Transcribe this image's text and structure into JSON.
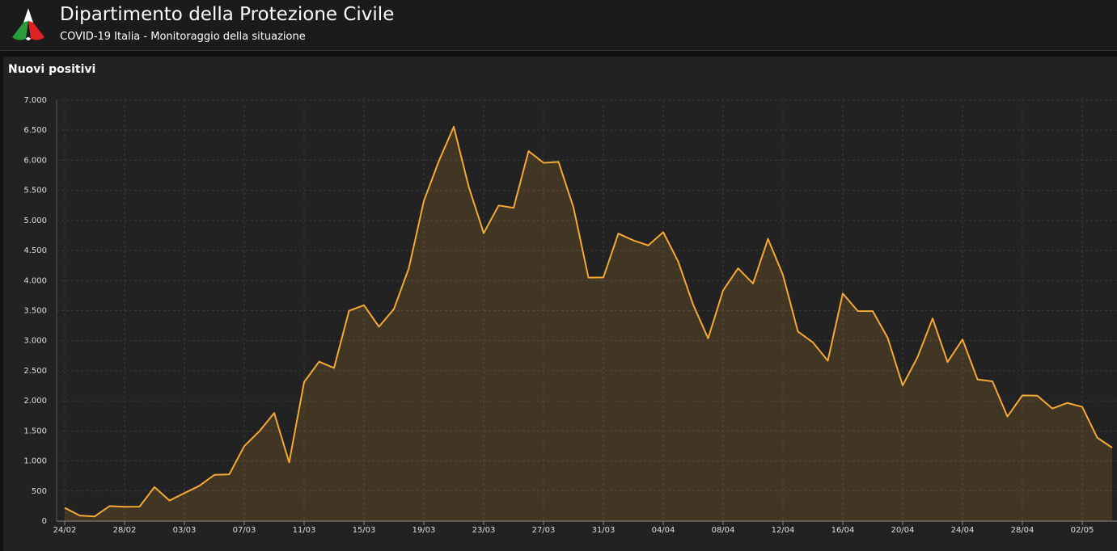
{
  "header": {
    "title": "Dipartimento della Protezione Civile",
    "subtitle": "COVID-19 Italia - Monitoraggio della situazione"
  },
  "chart_data": {
    "type": "area",
    "title": "Nuovi positivi",
    "categories": [
      "24/02",
      null,
      null,
      null,
      "28/02",
      null,
      null,
      null,
      "03/03",
      null,
      null,
      null,
      "07/03",
      null,
      null,
      null,
      "11/03",
      null,
      null,
      null,
      "15/03",
      null,
      null,
      null,
      "19/03",
      null,
      null,
      null,
      "23/03",
      null,
      null,
      null,
      "27/03",
      null,
      null,
      null,
      "31/03",
      null,
      null,
      null,
      "04/04",
      null,
      null,
      null,
      "08/04",
      null,
      null,
      null,
      "12/04",
      null,
      null,
      null,
      "16/04",
      null,
      null,
      null,
      "20/04",
      null,
      null,
      null,
      "24/04",
      null,
      null,
      null,
      "28/04",
      null,
      null,
      null,
      "02/05",
      null,
      null
    ],
    "values": [
      221,
      93,
      78,
      250,
      238,
      240,
      566,
      342,
      466,
      587,
      769,
      778,
      1247,
      1492,
      1797,
      977,
      2313,
      2651,
      2547,
      3497,
      3590,
      3233,
      3526,
      4207,
      5322,
      5986,
      6557,
      5560,
      4789,
      5249,
      5210,
      6153,
      5959,
      5974,
      5217,
      4050,
      4053,
      4782,
      4668,
      4585,
      4805,
      4316,
      3599,
      3039,
      3836,
      4204,
      3951,
      4694,
      4092,
      3153,
      2972,
      2667,
      3786,
      3493,
      3491,
      3047,
      2256,
      2729,
      3370,
      2646,
      3021,
      2357,
      2324,
      1739,
      2091,
      2086,
      1872,
      1965,
      1900,
      1389,
      1221
    ],
    "color": "#f5a934",
    "ylim": [
      0,
      7000
    ],
    "yticks": [
      0,
      500,
      {
        "value": 1000,
        "label": "1.000"
      },
      {
        "value": 1500,
        "label": "1.500"
      },
      {
        "value": 2000,
        "label": "2.000"
      },
      {
        "value": 2500,
        "label": "2.500"
      },
      {
        "value": 3000,
        "label": "3.000"
      },
      {
        "value": 3500,
        "label": "3.500"
      },
      {
        "value": 4000,
        "label": "4.000"
      },
      {
        "value": 4500,
        "label": "4.500"
      },
      {
        "value": 5000,
        "label": "5.000"
      },
      {
        "value": 5500,
        "label": "5.500"
      },
      {
        "value": 6000,
        "label": "6.000"
      },
      {
        "value": 6500,
        "label": "6.500"
      },
      {
        "value": 7000,
        "label": "7.000"
      }
    ],
    "grid": true
  }
}
